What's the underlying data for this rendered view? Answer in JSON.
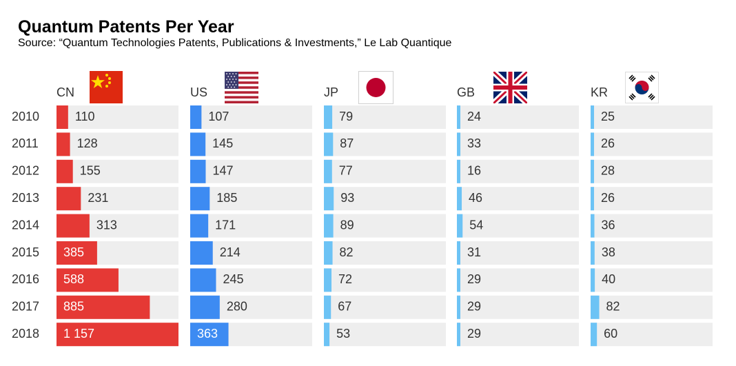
{
  "chart_data": {
    "type": "bar",
    "title": "Quantum Patents Per Year",
    "subtitle": "Source: “Quantum Technologies Patents, Publications & Investments,” Le Lab Quantique",
    "categories": [
      "2010",
      "2011",
      "2012",
      "2013",
      "2014",
      "2015",
      "2016",
      "2017",
      "2018"
    ],
    "series": [
      {
        "name": "CN",
        "values": [
          110,
          128,
          155,
          231,
          313,
          385,
          588,
          885,
          1157
        ],
        "labels": [
          "110",
          "128",
          "155",
          "231",
          "313",
          "385",
          "588",
          "885",
          "1 157"
        ],
        "color": "#e53935",
        "flag": "china-flag-icon"
      },
      {
        "name": "US",
        "values": [
          107,
          145,
          147,
          185,
          171,
          214,
          245,
          280,
          363
        ],
        "labels": [
          "107",
          "145",
          "147",
          "185",
          "171",
          "214",
          "245",
          "280",
          "363"
        ],
        "color": "#3d8bf2",
        "flag": "usa-flag-icon"
      },
      {
        "name": "JP",
        "values": [
          79,
          87,
          77,
          93,
          89,
          82,
          72,
          67,
          53
        ],
        "labels": [
          "79",
          "87",
          "77",
          "93",
          "89",
          "82",
          "72",
          "67",
          "53"
        ],
        "color": "#6cc3f5",
        "flag": "japan-flag-icon"
      },
      {
        "name": "GB",
        "values": [
          24,
          33,
          16,
          46,
          54,
          31,
          29,
          29,
          29
        ],
        "labels": [
          "24",
          "33",
          "16",
          "46",
          "54",
          "31",
          "29",
          "29",
          "29"
        ],
        "color": "#6cc3f5",
        "flag": "uk-flag-icon"
      },
      {
        "name": "KR",
        "values": [
          25,
          26,
          28,
          26,
          36,
          38,
          40,
          82,
          60
        ],
        "labels": [
          "25",
          "26",
          "28",
          "26",
          "36",
          "38",
          "40",
          "82",
          "60"
        ],
        "color": "#6cc3f5",
        "flag": "korea-flag-icon"
      }
    ],
    "track_color": "#eeeeee",
    "grid": false,
    "legend": "none"
  }
}
